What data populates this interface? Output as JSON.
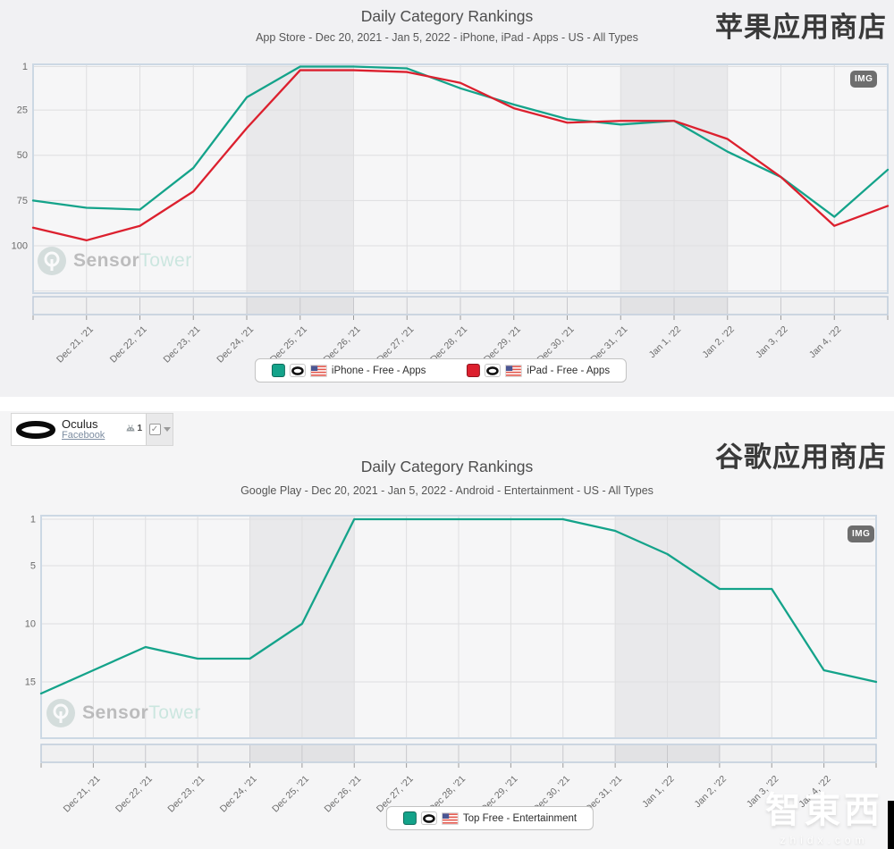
{
  "page": {
    "watermark_sensor": "Sensor",
    "watermark_tower": "Tower",
    "img_badge": "IMG",
    "site_watermark_cn": "智東西",
    "site_watermark_en": "zhidx.com"
  },
  "selector_card": {
    "app_name": "Oculus",
    "publisher_link": "Facebook",
    "android_count": "1",
    "check_glyph": "✓"
  },
  "chart_data": [
    {
      "type": "line",
      "title": "Daily Category Rankings",
      "subtitle": "App Store - Dec 20, 2021 - Jan 5, 2022 - iPhone, iPad - Apps - US - All Types",
      "store_label_cn": "苹果应用商店",
      "x": [
        "Dec 20, '21",
        "Dec 21, '21",
        "Dec 22, '21",
        "Dec 23, '21",
        "Dec 24, '21",
        "Dec 25, '21",
        "Dec 26, '21",
        "Dec 27, '21",
        "Dec 28, '21",
        "Dec 29, '21",
        "Dec 30, '21",
        "Dec 31, '21",
        "Jan 1, '22",
        "Jan 2, '22",
        "Jan 3, '22",
        "Jan 4, '22",
        "Jan 5, '22"
      ],
      "x_tick_labels": [
        "Dec 21, '21",
        "Dec 22, '21",
        "Dec 23, '21",
        "Dec 24, '21",
        "Dec 25, '21",
        "Dec 26, '21",
        "Dec 27, '21",
        "Dec 28, '21",
        "Dec 29, '21",
        "Dec 30, '21",
        "Dec 31, '21",
        "Jan 1, '22",
        "Jan 2, '22",
        "Jan 3, '22",
        "Jan 4, '22"
      ],
      "ylabel": "category rank (1 = top, axis inverted)",
      "yticks": [
        1,
        25,
        50,
        75,
        100
      ],
      "ylim": [
        1,
        127
      ],
      "grid": true,
      "legend_position": "bottom",
      "series": [
        {
          "name": "iPhone - Free - Apps",
          "color": "#14a38a",
          "values": [
            75,
            79,
            80,
            57,
            18,
            1,
            1,
            2,
            13,
            22,
            30,
            33,
            31,
            48,
            62,
            84,
            58
          ]
        },
        {
          "name": "iPad - Free - Apps",
          "color": "#dc202e",
          "values": [
            90,
            97,
            89,
            70,
            35,
            3,
            3,
            4,
            10,
            24,
            32,
            31,
            31,
            41,
            62,
            89,
            78
          ]
        }
      ],
      "weekend_bands": [
        [
          4,
          6
        ],
        [
          11,
          13
        ]
      ]
    },
    {
      "type": "line",
      "title": "Daily Category Rankings",
      "subtitle": "Google Play - Dec 20, 2021 - Jan 5, 2022 - Android - Entertainment - US - All Types",
      "store_label_cn": "谷歌应用商店",
      "x": [
        "Dec 20, '21",
        "Dec 21, '21",
        "Dec 22, '21",
        "Dec 23, '21",
        "Dec 24, '21",
        "Dec 25, '21",
        "Dec 26, '21",
        "Dec 27, '21",
        "Dec 28, '21",
        "Dec 29, '21",
        "Dec 30, '21",
        "Dec 31, '21",
        "Jan 1, '22",
        "Jan 2, '22",
        "Jan 3, '22",
        "Jan 4, '22",
        "Jan 5, '22"
      ],
      "x_tick_labels": [
        "Dec 21, '21",
        "Dec 22, '21",
        "Dec 23, '21",
        "Dec 24, '21",
        "Dec 25, '21",
        "Dec 26, '21",
        "Dec 27, '21",
        "Dec 28, '21",
        "Dec 29, '21",
        "Dec 30, '21",
        "Dec 31, '21",
        "Jan 1, '22",
        "Jan 2, '22",
        "Jan 3, '22",
        "Jan 4, '22"
      ],
      "ylabel": "category rank (1 = top, axis inverted)",
      "yticks": [
        1,
        5,
        10,
        15
      ],
      "ylim": [
        1,
        20
      ],
      "grid": true,
      "legend_position": "bottom",
      "series": [
        {
          "name": "Top Free - Entertainment",
          "color": "#14a38a",
          "values": [
            16,
            14,
            12,
            13,
            13,
            10,
            1,
            1,
            1,
            1,
            1,
            2,
            4,
            7,
            7,
            14,
            15
          ]
        }
      ],
      "weekend_bands": [
        [
          4,
          6
        ],
        [
          11,
          13
        ]
      ]
    }
  ]
}
